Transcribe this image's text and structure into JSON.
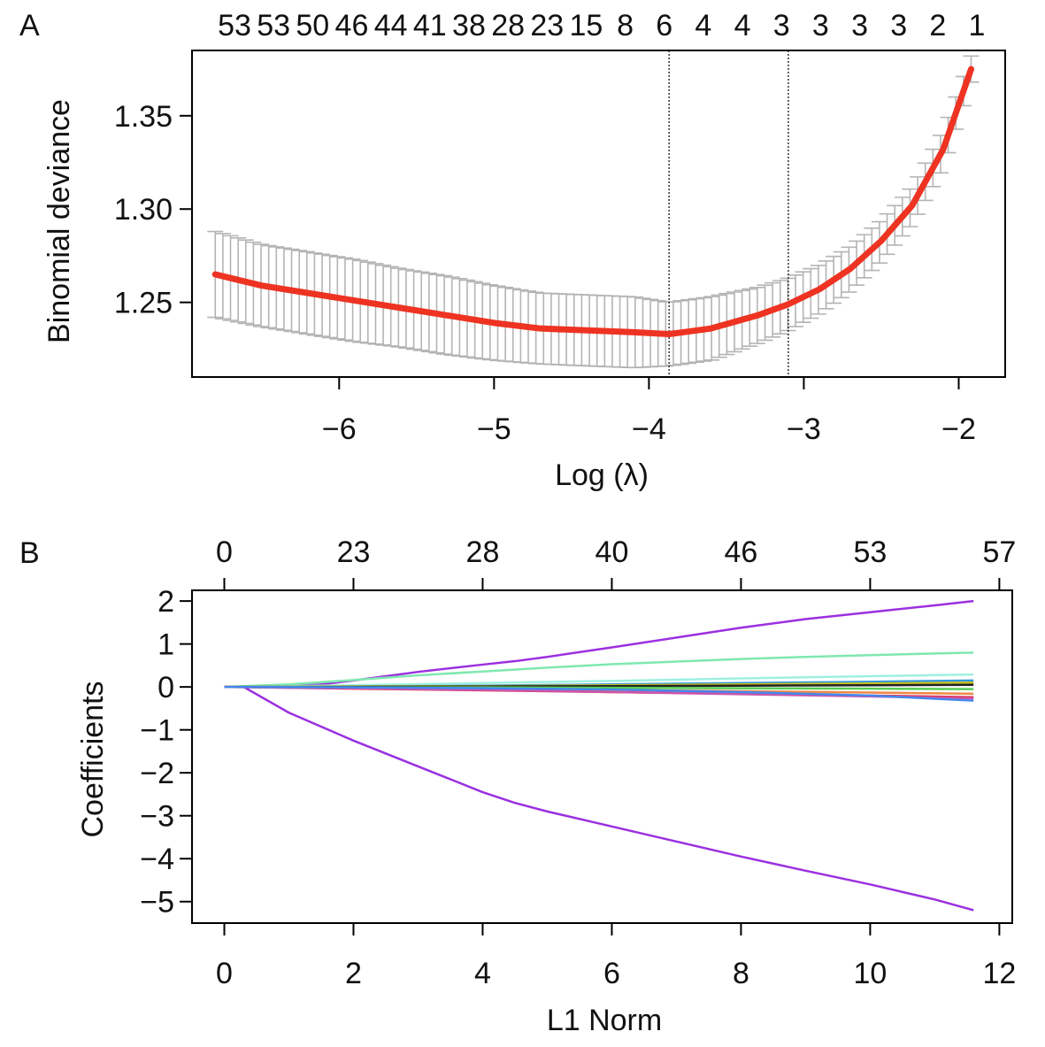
{
  "chart_data": [
    {
      "panel_label": "A",
      "type": "line",
      "xlabel": "Log (λ)",
      "ylabel": "Binomial deviance",
      "xlim": [
        -6.95,
        -1.7
      ],
      "ylim": [
        1.21,
        1.385
      ],
      "x_ticks": [
        -6,
        -5,
        -4,
        -3,
        -2
      ],
      "x_tick_labels": [
        "−6",
        "−5",
        "−4",
        "−3",
        "−2"
      ],
      "y_ticks": [
        1.25,
        1.3,
        1.35
      ],
      "y_tick_labels": [
        "1.25",
        "1.30",
        "1.35"
      ],
      "top_axis_labels": [
        "53",
        "53",
        "50",
        "46",
        "44",
        "41",
        "38",
        "28",
        "23",
        "15",
        "8",
        "6",
        "4",
        "4",
        "3",
        "3",
        "3",
        "3",
        "2",
        "1"
      ],
      "vertical_lines": [
        -3.87,
        -3.1
      ],
      "grid": false,
      "series": [
        {
          "x": [
            -6.8,
            -6.5,
            -6.2,
            -5.9,
            -5.6,
            -5.3,
            -5.0,
            -4.7,
            -4.4,
            -4.1,
            -3.87,
            -3.6,
            -3.3,
            -3.1,
            -2.9,
            -2.7,
            -2.5,
            -2.3,
            -2.1,
            -1.92
          ],
          "y": [
            1.265,
            1.259,
            1.255,
            1.251,
            1.247,
            1.243,
            1.239,
            1.236,
            1.235,
            1.234,
            1.233,
            1.236,
            1.243,
            1.249,
            1.257,
            1.268,
            1.283,
            1.302,
            1.332,
            1.375
          ],
          "err_low": [
            1.242,
            1.237,
            1.233,
            1.229,
            1.226,
            1.222,
            1.219,
            1.217,
            1.216,
            1.215,
            1.216,
            1.219,
            1.228,
            1.235,
            1.244,
            1.256,
            1.272,
            1.292,
            1.322,
            1.368
          ],
          "err_high": [
            1.288,
            1.281,
            1.277,
            1.273,
            1.268,
            1.264,
            1.259,
            1.255,
            1.254,
            1.253,
            1.25,
            1.253,
            1.258,
            1.263,
            1.27,
            1.28,
            1.294,
            1.312,
            1.342,
            1.382
          ]
        }
      ],
      "colors": {
        "mean": "#ee3322",
        "error": "#b4b4b4"
      }
    },
    {
      "panel_label": "B",
      "type": "line",
      "xlabel": "L1 Norm",
      "ylabel": "Coefficients",
      "xlim": [
        -0.5,
        12.2
      ],
      "ylim": [
        -5.5,
        2.25
      ],
      "x_ticks": [
        0,
        2,
        4,
        6,
        8,
        10,
        12
      ],
      "x_tick_labels": [
        "0",
        "2",
        "4",
        "6",
        "8",
        "10",
        "12"
      ],
      "y_ticks": [
        -5,
        -4,
        -3,
        -2,
        -1,
        0,
        1,
        2
      ],
      "y_tick_labels": [
        "−5",
        "−4",
        "−3",
        "−2",
        "−1",
        "0",
        "1",
        "2"
      ],
      "top_axis_ticks": [
        0,
        2,
        4,
        6,
        8,
        10,
        12
      ],
      "top_axis_labels": [
        "0",
        "23",
        "28",
        "40",
        "46",
        "53",
        "57"
      ],
      "grid": false,
      "series": [
        {
          "color": "#9b30e0",
          "x": [
            0,
            0.5,
            1,
            1.5,
            2,
            3,
            4,
            4.5,
            5,
            6,
            7,
            8,
            9,
            10,
            11,
            11.6
          ],
          "y": [
            0,
            0.01,
            0.03,
            0.06,
            0.15,
            0.35,
            0.52,
            0.6,
            0.7,
            0.92,
            1.15,
            1.38,
            1.58,
            1.74,
            1.9,
            2.0
          ]
        },
        {
          "color": "#9b30e0",
          "x": [
            0,
            0.3,
            1,
            2,
            3,
            4,
            4.5,
            5,
            6,
            7,
            8,
            9,
            10,
            11,
            11.6
          ],
          "y": [
            0,
            0,
            -0.6,
            -1.25,
            -1.85,
            -2.45,
            -2.7,
            -2.9,
            -3.25,
            -3.6,
            -3.95,
            -4.28,
            -4.6,
            -4.95,
            -5.2
          ]
        },
        {
          "color": "#7fe8b0",
          "x": [
            0,
            1,
            2,
            3,
            4,
            5,
            6,
            7,
            8,
            9,
            10,
            11,
            11.6
          ],
          "y": [
            0,
            0.06,
            0.16,
            0.27,
            0.36,
            0.45,
            0.53,
            0.59,
            0.65,
            0.7,
            0.74,
            0.78,
            0.8
          ]
        },
        {
          "color": "#9ff0e0",
          "x": [
            0,
            2,
            4,
            6,
            8,
            10,
            11.6
          ],
          "y": [
            0,
            0.04,
            0.09,
            0.14,
            0.2,
            0.25,
            0.29
          ]
        },
        {
          "color": "#3399dd",
          "x": [
            0,
            2,
            4,
            6,
            8,
            10,
            11.6
          ],
          "y": [
            0,
            0.01,
            0.03,
            0.06,
            0.09,
            0.12,
            0.15
          ]
        },
        {
          "color": "#c8c020",
          "x": [
            0,
            2,
            4,
            6,
            8,
            10,
            11.6
          ],
          "y": [
            0,
            0.01,
            0.02,
            0.04,
            0.06,
            0.08,
            0.1
          ]
        },
        {
          "color": "#222222",
          "x": [
            0,
            2,
            4,
            6,
            8,
            10,
            11.6
          ],
          "y": [
            0,
            0.0,
            0.01,
            0.02,
            0.03,
            0.04,
            0.05
          ]
        },
        {
          "color": "#55cc55",
          "x": [
            0,
            2,
            4,
            6,
            8,
            10,
            11.6
          ],
          "y": [
            0,
            -0.01,
            -0.01,
            -0.02,
            -0.03,
            -0.04,
            -0.05
          ]
        },
        {
          "color": "#ee8844",
          "x": [
            0,
            2,
            4,
            6,
            8,
            10,
            11.6
          ],
          "y": [
            0,
            -0.02,
            -0.04,
            -0.07,
            -0.1,
            -0.13,
            -0.16
          ]
        },
        {
          "color": "#dd3355",
          "x": [
            0,
            2,
            4,
            6,
            8,
            10,
            11.6
          ],
          "y": [
            0,
            -0.04,
            -0.08,
            -0.12,
            -0.16,
            -0.2,
            -0.24
          ]
        },
        {
          "color": "#cc55aa",
          "x": [
            0,
            2,
            4,
            6,
            8,
            10,
            11.6
          ],
          "y": [
            0,
            -0.03,
            -0.07,
            -0.12,
            -0.17,
            -0.22,
            -0.27
          ]
        },
        {
          "color": "#4488ee",
          "x": [
            0,
            2,
            4,
            6,
            8,
            10,
            11.6
          ],
          "y": [
            0,
            -0.01,
            -0.03,
            -0.06,
            -0.12,
            -0.2,
            -0.32
          ]
        }
      ]
    }
  ]
}
